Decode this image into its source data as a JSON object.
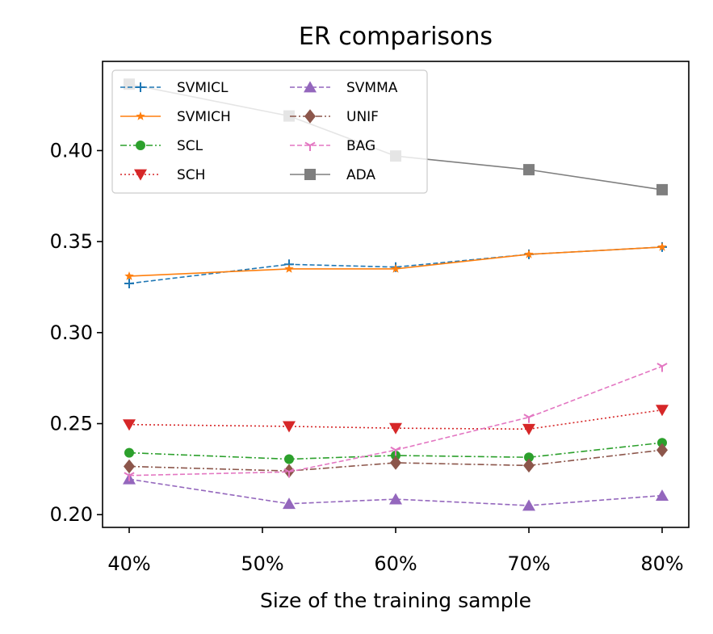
{
  "chart_data": {
    "type": "line",
    "title": "ER comparisons",
    "xlabel": "Size of the training sample",
    "ylabel": "",
    "x": [
      40,
      52,
      60,
      70,
      80
    ],
    "xticks": [
      40,
      50,
      60,
      70,
      80
    ],
    "xtick_labels": [
      "40%",
      "50%",
      "60%",
      "70%",
      "80%"
    ],
    "xlim": [
      38,
      82
    ],
    "ylim": [
      0.193,
      0.449
    ],
    "yticks": [
      0.2,
      0.25,
      0.3,
      0.35,
      0.4
    ],
    "ytick_labels": [
      "0.20",
      "0.25",
      "0.30",
      "0.35",
      "0.40"
    ],
    "grid": false,
    "legend_position": "top-left",
    "series": [
      {
        "name": "SVMICL",
        "color": "#1f77b4",
        "dash": "dashed",
        "marker": "plus",
        "values": [
          0.327,
          0.3375,
          0.336,
          0.343,
          0.347
        ]
      },
      {
        "name": "SVMICH",
        "color": "#ff7f0e",
        "dash": "solid",
        "marker": "star",
        "values": [
          0.331,
          0.335,
          0.335,
          0.343,
          0.347
        ]
      },
      {
        "name": "SCL",
        "color": "#2ca02c",
        "dash": "dashdot",
        "marker": "circle",
        "values": [
          0.234,
          0.2305,
          0.2325,
          0.2315,
          0.2395
        ]
      },
      {
        "name": "SCH",
        "color": "#d62728",
        "dash": "dotted",
        "marker": "triangle-down",
        "values": [
          0.2495,
          0.2485,
          0.2475,
          0.247,
          0.2575
        ]
      },
      {
        "name": "SVMMA",
        "color": "#9467bd",
        "dash": "dashed",
        "marker": "triangle-up",
        "values": [
          0.2195,
          0.206,
          0.2085,
          0.205,
          0.2105
        ]
      },
      {
        "name": "UNIF",
        "color": "#8c564b",
        "dash": "dashdot",
        "marker": "diamond",
        "values": [
          0.2265,
          0.224,
          0.2285,
          0.227,
          0.2355
        ]
      },
      {
        "name": "BAG",
        "color": "#e377c2",
        "dash": "dashed",
        "marker": "tri-down",
        "values": [
          0.2215,
          0.2235,
          0.2355,
          0.2535,
          0.2815
        ]
      },
      {
        "name": "ADA",
        "color": "#7f7f7f",
        "dash": "solid",
        "marker": "square",
        "values": [
          0.4365,
          0.419,
          0.397,
          0.3895,
          0.3785
        ]
      }
    ]
  }
}
